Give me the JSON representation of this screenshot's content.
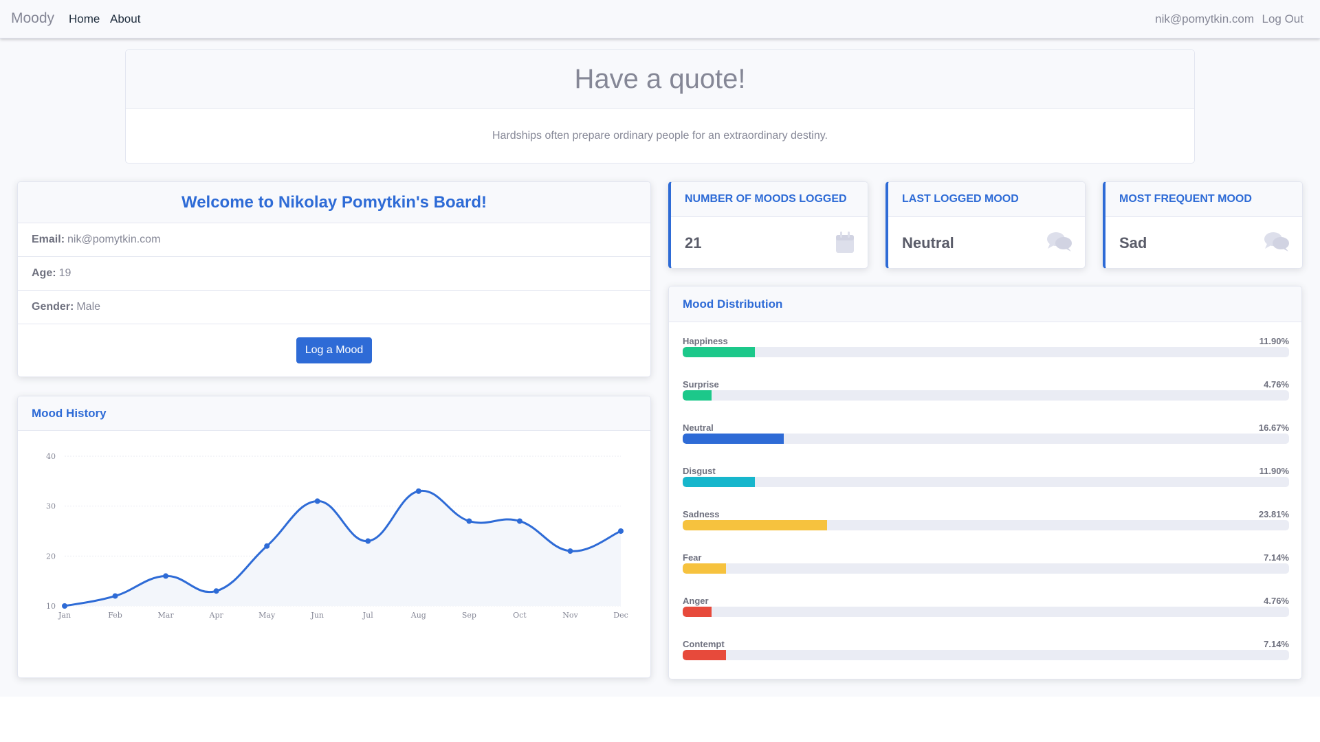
{
  "navbar": {
    "brand": "Moody",
    "links": [
      "Home",
      "About"
    ],
    "user_email": "nik@pomytkin.com",
    "logout_label": "Log Out"
  },
  "quote": {
    "title": "Have a quote!",
    "text": "Hardships often prepare ordinary people for an extraordinary destiny."
  },
  "profile": {
    "title": "Welcome to Nikolay Pomytkin's Board!",
    "email_label": "Email:",
    "email": "nik@pomytkin.com",
    "age_label": "Age:",
    "age": "19",
    "gender_label": "Gender:",
    "gender": "Male",
    "log_button": "Log a Mood"
  },
  "stats": [
    {
      "title": "Number of Moods Logged",
      "value": "21",
      "icon": "calendar-icon"
    },
    {
      "title": "Last Logged Mood",
      "value": "Neutral",
      "icon": "comments-icon"
    },
    {
      "title": "Most Frequent Mood",
      "value": "Sad",
      "icon": "comments-icon"
    }
  ],
  "distribution": {
    "title": "Mood Distribution",
    "items": [
      {
        "label": "Happiness",
        "value": "11.90%",
        "percent": 11.9,
        "color": "#1cc88a"
      },
      {
        "label": "Surprise",
        "value": "4.76%",
        "percent": 4.76,
        "color": "#1cc88a"
      },
      {
        "label": "Neutral",
        "value": "16.67%",
        "percent": 16.67,
        "color": "#2e6bd6"
      },
      {
        "label": "Disgust",
        "value": "11.90%",
        "percent": 11.9,
        "color": "#17b6cc"
      },
      {
        "label": "Sadness",
        "value": "23.81%",
        "percent": 23.81,
        "color": "#f6c23e"
      },
      {
        "label": "Fear",
        "value": "7.14%",
        "percent": 7.14,
        "color": "#f6c23e"
      },
      {
        "label": "Anger",
        "value": "4.76%",
        "percent": 4.76,
        "color": "#e74a3b"
      },
      {
        "label": "Contempt",
        "value": "7.14%",
        "percent": 7.14,
        "color": "#e74a3b"
      }
    ]
  },
  "history": {
    "title": "Mood History"
  },
  "chart_data": {
    "type": "area",
    "categories": [
      "Jan",
      "Feb",
      "Mar",
      "Apr",
      "May",
      "Jun",
      "Jul",
      "Aug",
      "Sep",
      "Oct",
      "Nov",
      "Dec"
    ],
    "values": [
      10,
      12,
      16,
      13,
      22,
      31,
      23,
      33,
      27,
      27,
      21,
      25
    ],
    "yticks": [
      10,
      20,
      30,
      40
    ],
    "ylim": [
      10,
      40
    ],
    "grid": true,
    "line_color": "#2e6bd6",
    "fill_color": "#f3f6fb"
  }
}
